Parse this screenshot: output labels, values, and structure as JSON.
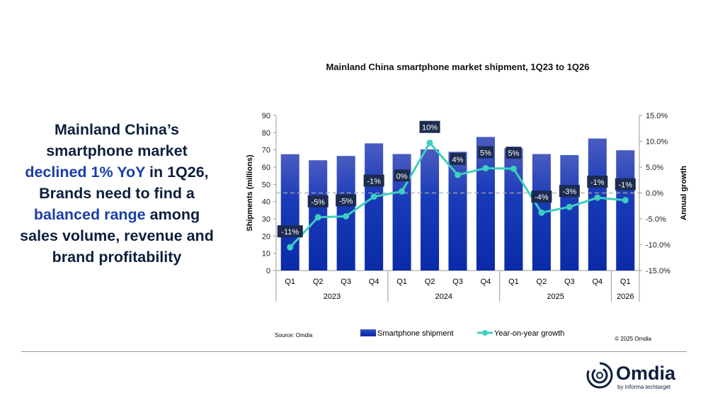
{
  "headline": {
    "parts": [
      {
        "text": "Mainland China’s smartphone market ",
        "highlight": false
      },
      {
        "text": "declined 1% YoY",
        "highlight": true
      },
      {
        "text": " in 1Q26, Brands need to find a ",
        "highlight": false
      },
      {
        "text": "balanced range",
        "highlight": true
      },
      {
        "text": " among sales volume, revenue and brand profitability",
        "highlight": false
      }
    ]
  },
  "chart_data": {
    "type": "bar+line",
    "title": "Mainland China smartphone market shipment, 1Q23 to 1Q26",
    "categories": [
      "Q1",
      "Q2",
      "Q3",
      "Q4",
      "Q1",
      "Q2",
      "Q3",
      "Q4",
      "Q1",
      "Q2",
      "Q3",
      "Q4",
      "Q1"
    ],
    "year_groups": [
      {
        "label": "2023",
        "count": 4
      },
      {
        "label": "2024",
        "count": 4
      },
      {
        "label": "2025",
        "count": 4
      },
      {
        "label": "2026",
        "count": 1
      }
    ],
    "ylabel": "Shipments (millions)",
    "y2label": "Annual growth",
    "ylim": [
      0,
      90
    ],
    "yticks": [
      0,
      10,
      20,
      30,
      40,
      50,
      60,
      70,
      80,
      90
    ],
    "y2lim": [
      -15,
      15
    ],
    "y2ticks": [
      "-15.0%",
      "-10.0%",
      "-5.0%",
      "0.0%",
      "5.0%",
      "10.0%",
      "15.0%"
    ],
    "series": [
      {
        "name": "Smartphone shipment",
        "type": "bar",
        "axis": "left",
        "color": "#0a2fb0",
        "values": [
          67.5,
          64.0,
          66.5,
          73.8,
          67.6,
          70.3,
          68.9,
          77.5,
          71.0,
          67.6,
          67.0,
          76.6,
          69.8
        ]
      },
      {
        "name": "Year-on-year growth",
        "type": "line",
        "axis": "right",
        "color": "#3ccfc0",
        "values": [
          -10.5,
          -4.7,
          -4.5,
          -0.7,
          0.3,
          9.7,
          3.5,
          4.8,
          4.7,
          -3.8,
          -2.7,
          -0.9,
          -1.4
        ],
        "labels": [
          "-11%",
          "-5%",
          "-5%",
          "-1%",
          "0%",
          "10%",
          "4%",
          "5%",
          "5%",
          "-4%",
          "-3%",
          "-1%",
          "-1%"
        ]
      }
    ],
    "legend": "bottom",
    "grid": false,
    "zero_growth_line": "dashed"
  },
  "footer": {
    "source": "Source: Omdia",
    "copyright": "© 2025 Omdia"
  },
  "logo": {
    "name": "Omdia",
    "tagline": "by informa techtarget"
  }
}
